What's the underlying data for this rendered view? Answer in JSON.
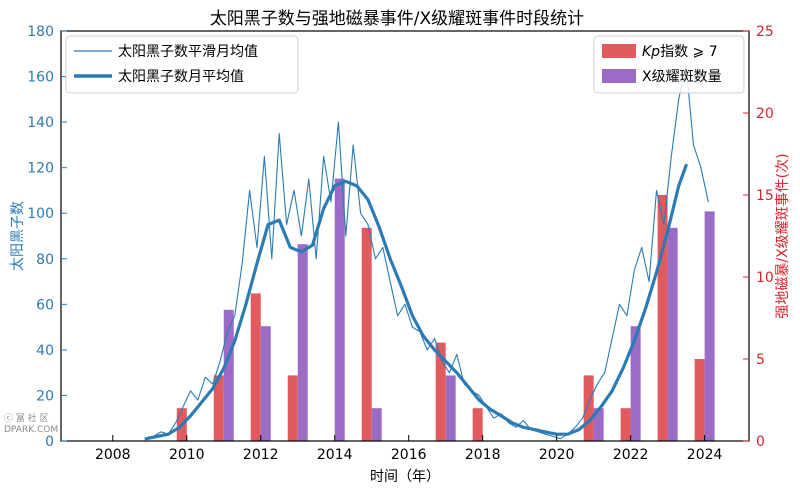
{
  "colors": {
    "left_axis": "#2b7bb4",
    "right_axis": "#d6242a",
    "kp_bar": "#e05a5e",
    "xflare_bar": "#9b6cc6",
    "frame": "#000000"
  },
  "watermark": {
    "line1": "ⓒ  冨  社  区",
    "line2": "DPARK.COM"
  },
  "chart_data": {
    "type": "line+bar",
    "title": "太阳黑子数与强地磁暴事件/X级耀斑事件时段统计",
    "xlabel": "时间（年）",
    "ylabel_left": "太阳黑子数",
    "ylabel_right": "强地磁暴/X级耀斑事件(次)",
    "xlim": [
      2006.6,
      2025.2
    ],
    "ylim_left": [
      0,
      180
    ],
    "ylim_right": [
      0,
      25
    ],
    "xticks": [
      2008,
      2010,
      2012,
      2014,
      2016,
      2018,
      2020,
      2022,
      2024
    ],
    "yticks_left": [
      0,
      20,
      40,
      60,
      80,
      100,
      120,
      140,
      160,
      180
    ],
    "yticks_right": [
      0,
      5,
      10,
      15,
      20,
      25
    ],
    "legend_left": {
      "position": "top-left",
      "entries": [
        "太阳黑子数平滑月均值",
        "太阳黑子数月平均值"
      ]
    },
    "legend_right": {
      "position": "top-right",
      "entries_prefix": "Kp",
      "entries": [
        "指数 ⩾ 7",
        "X级耀斑数量"
      ]
    },
    "series_lines": [
      {
        "name": "太阳黑子数平滑月均值",
        "style": "thin",
        "x": [
          2008.9,
          2009.1,
          2009.3,
          2009.5,
          2009.7,
          2009.9,
          2010.1,
          2010.3,
          2010.5,
          2010.7,
          2010.9,
          2011.1,
          2011.3,
          2011.5,
          2011.7,
          2011.9,
          2012.1,
          2012.3,
          2012.5,
          2012.7,
          2012.9,
          2013.1,
          2013.3,
          2013.5,
          2013.7,
          2013.9,
          2014.1,
          2014.3,
          2014.5,
          2014.7,
          2014.9,
          2015.1,
          2015.3,
          2015.5,
          2015.7,
          2015.9,
          2016.1,
          2016.3,
          2016.5,
          2016.7,
          2016.9,
          2017.1,
          2017.3,
          2017.5,
          2017.7,
          2017.9,
          2018.1,
          2018.3,
          2018.5,
          2018.7,
          2018.9,
          2019.1,
          2019.3,
          2019.5,
          2019.7,
          2019.9,
          2020.1,
          2020.3,
          2020.5,
          2020.7,
          2020.9,
          2021.1,
          2021.3,
          2021.5,
          2021.7,
          2021.9,
          2022.1,
          2022.3,
          2022.5,
          2022.7,
          2022.9,
          2023.1,
          2023.3,
          2023.5,
          2023.7,
          2023.9,
          2024.1
        ],
        "y": [
          1,
          2,
          4,
          3,
          8,
          15,
          22,
          18,
          28,
          25,
          35,
          48,
          55,
          78,
          110,
          85,
          125,
          80,
          135,
          95,
          110,
          90,
          115,
          80,
          125,
          105,
          140,
          90,
          130,
          100,
          95,
          80,
          85,
          70,
          55,
          60,
          50,
          48,
          40,
          45,
          35,
          30,
          38,
          25,
          22,
          20,
          15,
          10,
          12,
          8,
          6,
          9,
          5,
          4,
          3,
          2,
          1,
          3,
          6,
          10,
          18,
          25,
          30,
          45,
          60,
          55,
          75,
          85,
          70,
          110,
          95,
          125,
          150,
          165,
          130,
          120,
          105
        ]
      },
      {
        "name": "太阳黑子数月平均值",
        "style": "thick",
        "x": [
          2008.9,
          2009.2,
          2009.5,
          2009.8,
          2010.1,
          2010.4,
          2010.7,
          2011.0,
          2011.3,
          2011.6,
          2011.9,
          2012.2,
          2012.5,
          2012.8,
          2013.1,
          2013.4,
          2013.7,
          2014.0,
          2014.3,
          2014.6,
          2014.9,
          2015.2,
          2015.5,
          2015.8,
          2016.1,
          2016.4,
          2016.7,
          2017.0,
          2017.3,
          2017.6,
          2017.9,
          2018.2,
          2018.5,
          2018.8,
          2019.1,
          2019.4,
          2019.7,
          2020.0,
          2020.3,
          2020.6,
          2020.9,
          2021.2,
          2021.5,
          2021.8,
          2022.1,
          2022.4,
          2022.7,
          2023.0,
          2023.3,
          2023.5
        ],
        "y": [
          1,
          2,
          3,
          6,
          11,
          17,
          23,
          32,
          44,
          60,
          78,
          95,
          97,
          85,
          83,
          86,
          102,
          112,
          114,
          112,
          106,
          94,
          80,
          68,
          55,
          46,
          40,
          35,
          30,
          24,
          18,
          14,
          11,
          8,
          6,
          5,
          4,
          3,
          3,
          5,
          9,
          15,
          22,
          32,
          44,
          58,
          74,
          92,
          112,
          121
        ]
      }
    ],
    "series_bars": [
      {
        "name": "Kp指数 ⩾ 7",
        "x": [
          2010,
          2011,
          2012,
          2013,
          2015,
          2017,
          2018,
          2021,
          2022,
          2023,
          2024
        ],
        "values": [
          2,
          4,
          9,
          4,
          13,
          6,
          2,
          4,
          2,
          15,
          5
        ]
      },
      {
        "name": "X级耀斑数量",
        "x": [
          2011,
          2012,
          2013,
          2014,
          2015,
          2017,
          2021,
          2022,
          2023,
          2024
        ],
        "values": [
          8,
          7,
          12,
          16,
          2,
          4,
          2,
          7,
          13,
          14
        ]
      }
    ]
  }
}
